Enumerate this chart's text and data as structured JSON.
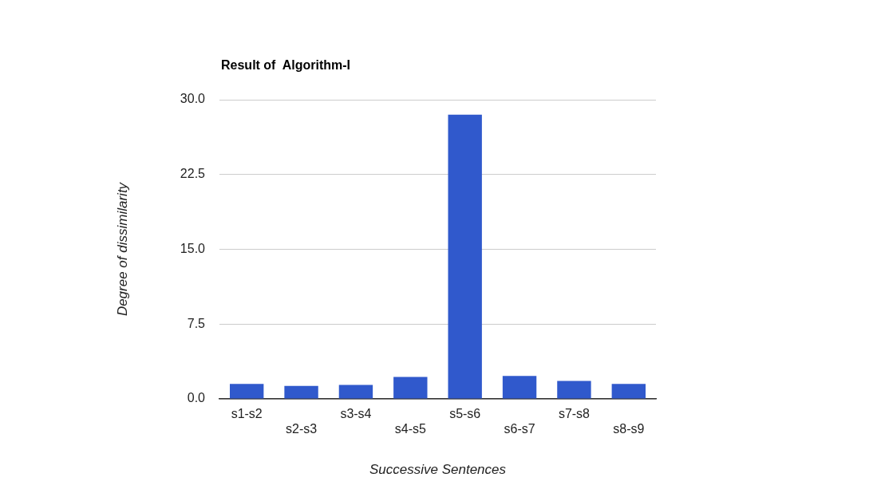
{
  "chart_data": {
    "type": "bar",
    "title": "Result of  Algorithm-I",
    "xlabel": "Successive Sentences",
    "ylabel": "Degree of dissimilarity",
    "categories": [
      "s1-s2",
      "s2-s3",
      "s3-s4",
      "s4-s5",
      "s5-s6",
      "s6-s7",
      "s7-s8",
      "s8-s9"
    ],
    "values": [
      1.5,
      1.3,
      1.4,
      2.2,
      28.5,
      2.3,
      1.8,
      1.5
    ],
    "color": "#3059cc",
    "ylim": [
      0,
      30
    ],
    "yticks": [
      {
        "value": 0,
        "label": "0.0"
      },
      {
        "value": 7.5,
        "label": "7.5"
      },
      {
        "value": 15,
        "label": "15.0"
      },
      {
        "value": 22.5,
        "label": "22.5"
      },
      {
        "value": 30,
        "label": "30.0"
      }
    ],
    "grid": "y"
  }
}
